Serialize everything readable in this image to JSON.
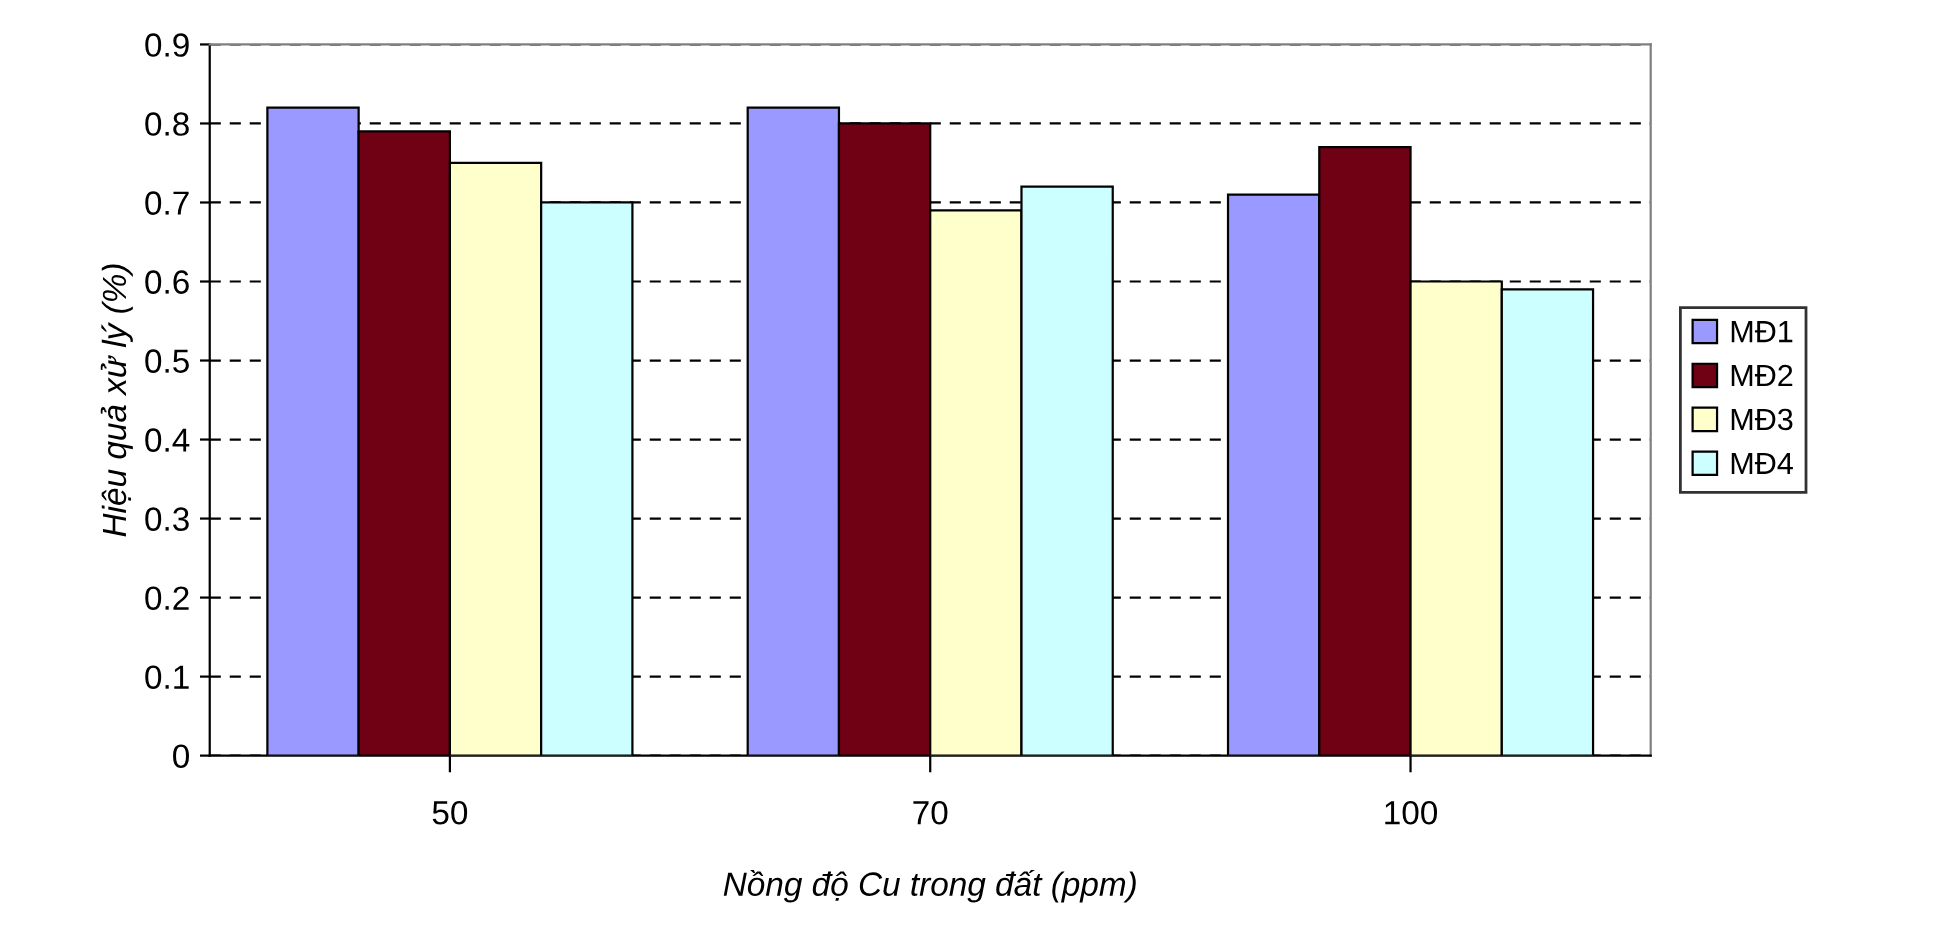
{
  "chart_data": {
    "type": "bar",
    "xlabel": "Nồng độ Cu trong đất (ppm)",
    "ylabel": "Hiệu quả xử lý (%)",
    "categories": [
      "50",
      "70",
      "100"
    ],
    "series": [
      {
        "name": "MĐ1",
        "color": "#9999ff",
        "values": [
          0.82,
          0.82,
          0.71
        ]
      },
      {
        "name": "MĐ2",
        "color": "#700014",
        "values": [
          0.79,
          0.8,
          0.77
        ]
      },
      {
        "name": "MĐ3",
        "color": "#ffffcc",
        "values": [
          0.75,
          0.69,
          0.6
        ]
      },
      {
        "name": "MĐ4",
        "color": "#ccffff",
        "values": [
          0.7,
          0.72,
          0.59
        ]
      }
    ],
    "ylim": [
      0,
      0.9
    ],
    "yticks": [
      0,
      0.1,
      0.2,
      0.3,
      0.4,
      0.5,
      0.6,
      0.7,
      0.8,
      0.9
    ],
    "grid": "y",
    "legend": "right"
  }
}
